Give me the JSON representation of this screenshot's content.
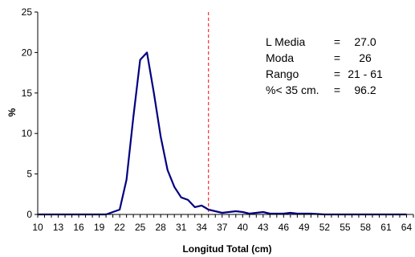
{
  "chart_data": {
    "type": "line",
    "title": "",
    "xlabel": "Longitud Total (cm)",
    "ylabel": "%",
    "xlim": [
      10,
      65
    ],
    "ylim": [
      0,
      25
    ],
    "x_ticks": [
      10,
      13,
      16,
      19,
      22,
      25,
      28,
      31,
      34,
      37,
      40,
      43,
      46,
      49,
      52,
      55,
      58,
      61,
      64
    ],
    "y_ticks": [
      0,
      5,
      10,
      15,
      20,
      25
    ],
    "grid": false,
    "legend": "none",
    "series": [
      {
        "color": "#000080",
        "x": [
          10,
          11,
          12,
          13,
          14,
          15,
          16,
          17,
          18,
          19,
          20,
          21,
          22,
          23,
          24,
          25,
          26,
          27,
          28,
          29,
          30,
          31,
          32,
          33,
          34,
          35,
          36,
          37,
          38,
          39,
          40,
          41,
          42,
          43,
          44,
          45,
          46,
          47,
          48,
          49,
          50,
          51,
          52,
          53,
          54,
          55,
          56,
          57,
          58,
          59,
          60,
          61,
          62,
          63,
          64
        ],
        "y": [
          0,
          0,
          0,
          0,
          0,
          0,
          0,
          0,
          0,
          0,
          0,
          0.3,
          0.6,
          4.3,
          12,
          19.1,
          20,
          15,
          9.6,
          5.5,
          3.4,
          2.1,
          1.8,
          0.9,
          1.1,
          0.6,
          0.4,
          0.2,
          0.3,
          0.4,
          0.3,
          0.1,
          0.2,
          0.3,
          0.1,
          0.1,
          0.1,
          0.2,
          0.1,
          0.1,
          0.1,
          0.05,
          0,
          0,
          0,
          0,
          0,
          0,
          0,
          0,
          0,
          0,
          0,
          0,
          0
        ]
      }
    ],
    "reference_line": {
      "x": 35,
      "color": "#ff0000",
      "style": "dashed"
    },
    "annotation": {
      "rows": [
        {
          "label": "L Media",
          "eq": "=",
          "value": "27.0"
        },
        {
          "label": "Moda",
          "eq": "=",
          "value": "26"
        },
        {
          "label": "Rango",
          "eq": "=",
          "value": "21 - 61"
        },
        {
          "label": "%< 35 cm.",
          "eq": "=",
          "value": "96.2"
        }
      ]
    }
  }
}
